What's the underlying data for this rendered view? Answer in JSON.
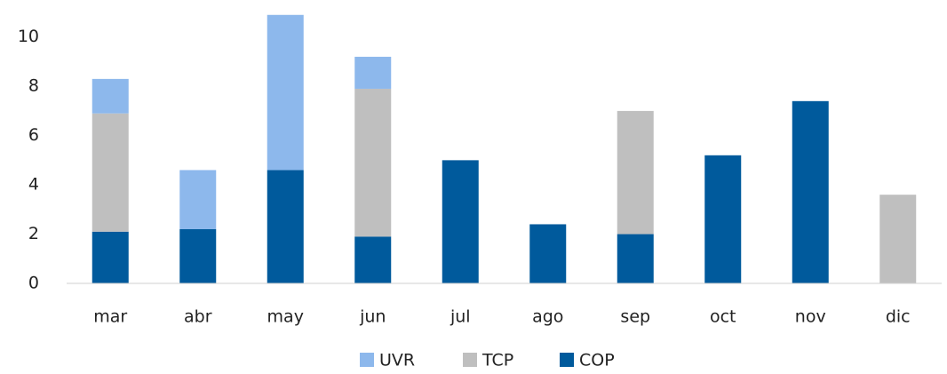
{
  "chart_data": {
    "type": "stacked_bar",
    "categories": [
      "mar",
      "abr",
      "may",
      "jun",
      "jul",
      "ago",
      "sep",
      "oct",
      "nov",
      "dic"
    ],
    "series": [
      {
        "name": "UVR",
        "color": "#8db8ec",
        "values": [
          1.4,
          2.4,
          6.3,
          1.3,
          0,
          0,
          0,
          0,
          0,
          0
        ]
      },
      {
        "name": "TCP",
        "color": "#bfbfbf",
        "values": [
          4.8,
          0,
          0,
          6.0,
          0,
          0,
          5.0,
          0,
          0,
          3.6
        ]
      },
      {
        "name": "COP",
        "color": "#005a9c",
        "values": [
          2.1,
          2.2,
          4.6,
          1.9,
          5.0,
          2.4,
          2.0,
          5.2,
          7.4,
          0
        ]
      }
    ],
    "ylim": [
      0,
      11
    ],
    "yticks": [
      0,
      2,
      4,
      6,
      8,
      10
    ],
    "grid": false,
    "legend": "bottom"
  }
}
